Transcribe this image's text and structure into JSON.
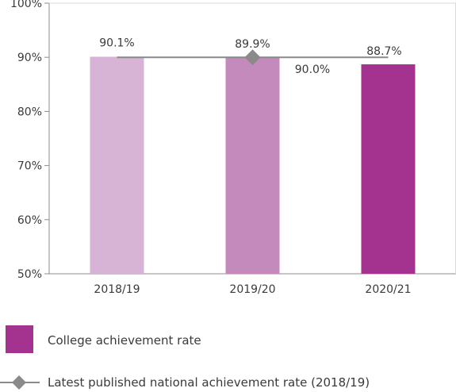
{
  "chart_data": {
    "type": "bar",
    "categories": [
      "2018/19",
      "2019/20",
      "2020/21"
    ],
    "series": [
      {
        "name": "College achievement rate",
        "values": [
          90.1,
          89.9,
          88.7
        ],
        "colors": [
          "#d7b3d6",
          "#c58abc",
          "#a4338f"
        ]
      }
    ],
    "reference_line": {
      "name": "Latest published national achievement rate (2018/19)",
      "value": 90.0,
      "value_label": "90.0%",
      "color": "#8a8a8a"
    },
    "data_labels": [
      "90.1%",
      "89.9%",
      "88.7%"
    ],
    "ylim": [
      50,
      100
    ],
    "yticks": [
      50,
      60,
      70,
      80,
      90,
      100
    ],
    "ytick_labels": [
      "50%",
      "60%",
      "70%",
      "80%",
      "90%",
      "100%"
    ],
    "grid": false,
    "legend_placement": "bottom",
    "title": "",
    "xlabel": "",
    "ylabel": ""
  }
}
